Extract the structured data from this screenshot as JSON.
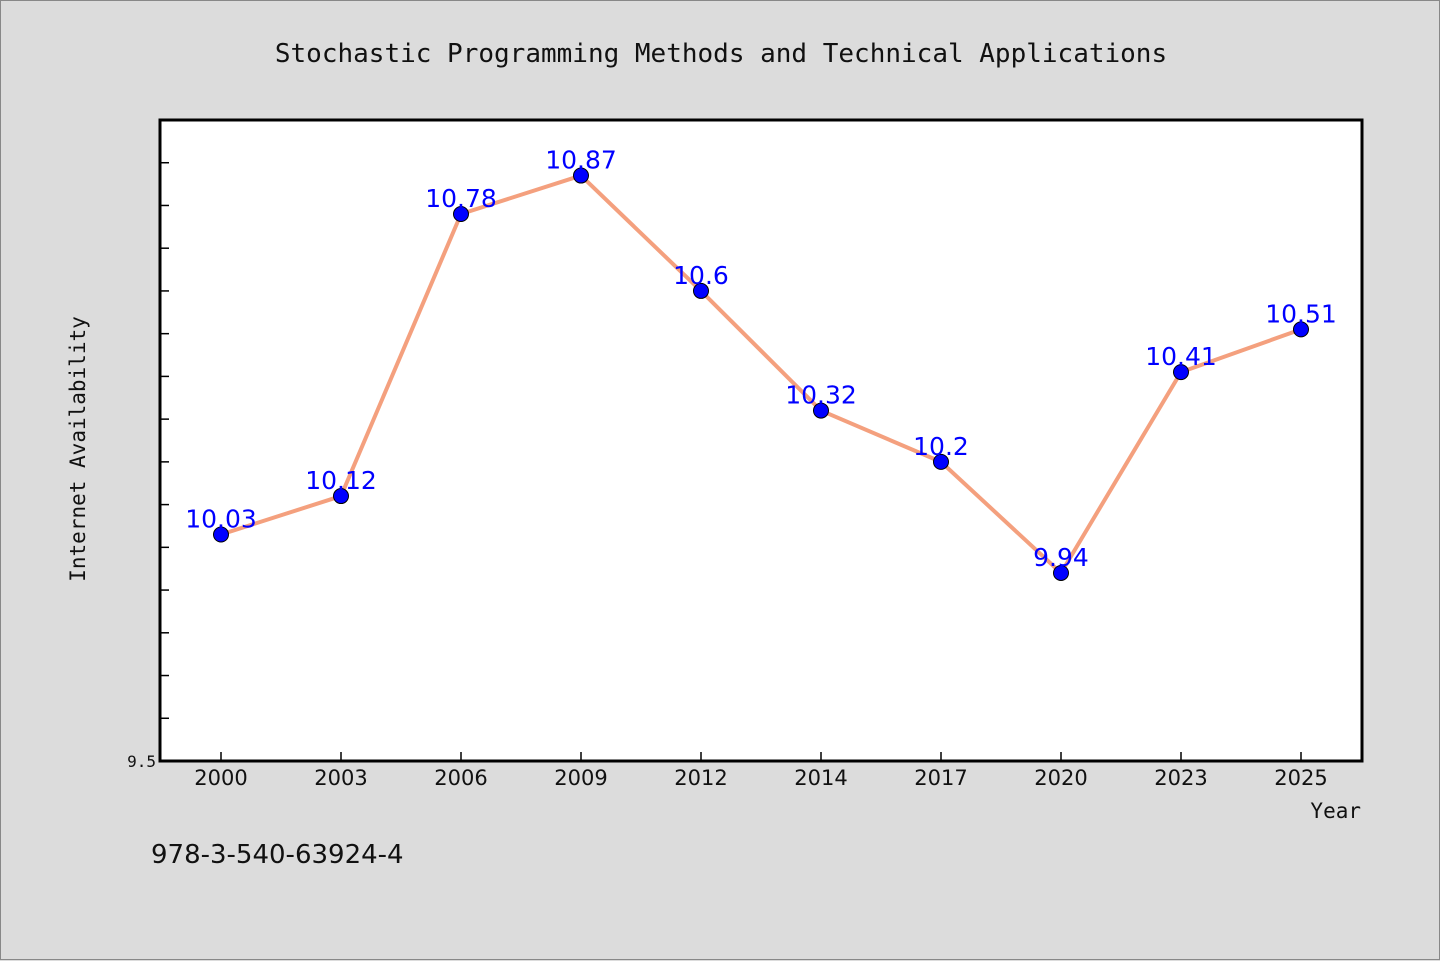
{
  "chart_data": {
    "type": "line",
    "title": "Stochastic Programming Methods and Technical Applications",
    "xlabel": "Year",
    "ylabel": "Internet Availability",
    "categories": [
      "2000",
      "2003",
      "2006",
      "2009",
      "2012",
      "2014",
      "2017",
      "2020",
      "2023",
      "2025"
    ],
    "series": [
      {
        "values": [
          10.03,
          10.12,
          10.78,
          10.87,
          10.6,
          10.32,
          10.2,
          9.94,
          10.41,
          10.51
        ],
        "labels": [
          "10.03",
          "10.12",
          "10.78",
          "10.87",
          "10.6",
          "10.32",
          "10.2",
          "9.94",
          "10.41",
          "10.51"
        ]
      }
    ],
    "ylim": [
      9.5,
      11.0
    ],
    "y_tick_labels": [
      "9.5"
    ],
    "grid": false,
    "legend": "none",
    "colors": {
      "line": "#f4a07e",
      "marker": "#0000ff",
      "data_label": "#0000ff",
      "background": "#dcdcdc",
      "plot_background": "#ffffff"
    }
  },
  "footer": {
    "isbn": "978-3-540-63924-4"
  }
}
